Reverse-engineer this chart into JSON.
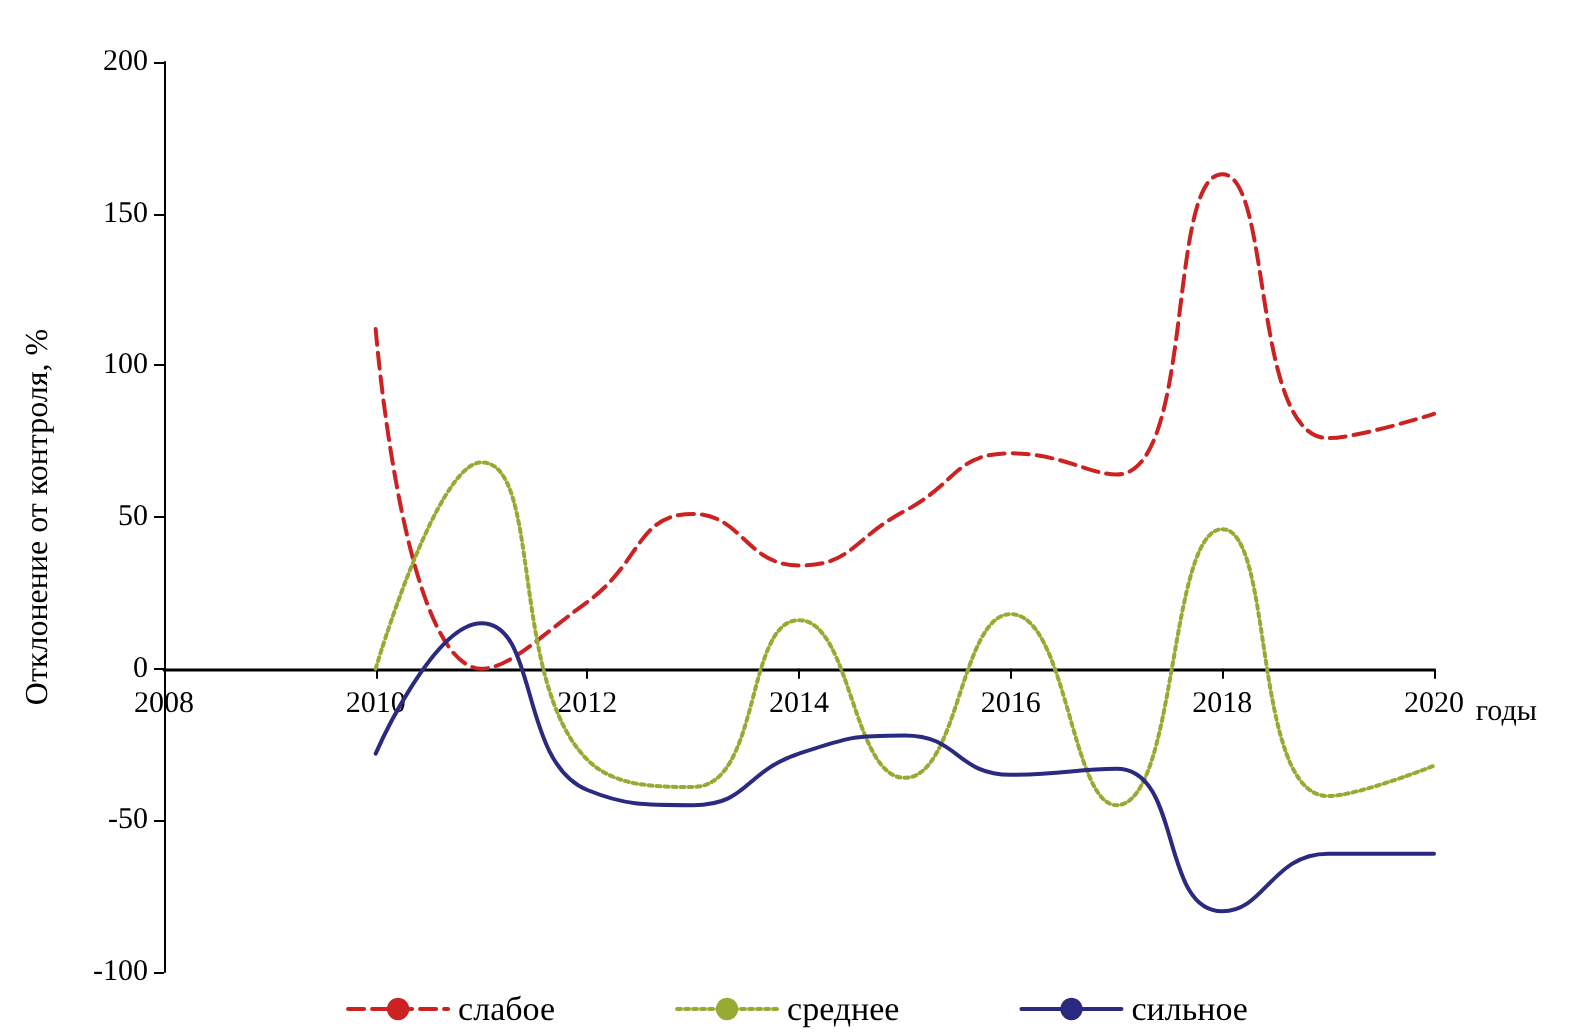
{
  "chart_data": {
    "type": "line",
    "ylabel": "Отклонение от контроля, %",
    "xlabel": "годы",
    "x": [
      2010,
      2011,
      2012,
      2013,
      2014,
      2015,
      2016,
      2017,
      2018,
      2019,
      2020
    ],
    "xlim": [
      2008,
      2020
    ],
    "xticks": [
      2008,
      2010,
      2012,
      2014,
      2016,
      2018,
      2020
    ],
    "ylim": [
      -100,
      200
    ],
    "yticks": [
      -100,
      -50,
      0,
      50,
      100,
      150,
      200
    ],
    "grid": false,
    "legend": "bottom",
    "marker": "none",
    "series": [
      {
        "name": "слабое",
        "color": "#cc2222",
        "line_style": "dashed",
        "values": [
          112,
          0,
          22,
          51,
          34,
          52,
          71,
          64,
          163,
          76,
          84
        ]
      },
      {
        "name": "среднее",
        "color": "#99aa33",
        "line_style": "dotted",
        "values": [
          0,
          68,
          -30,
          -39,
          16,
          -36,
          18,
          -45,
          46,
          -42,
          -32
        ]
      },
      {
        "name": "сильное",
        "color": "#2a2a80",
        "line_style": "solid",
        "values": [
          -28,
          15,
          -40,
          -45,
          -28,
          -22,
          -35,
          -33,
          -80,
          -61,
          -61
        ]
      }
    ]
  }
}
